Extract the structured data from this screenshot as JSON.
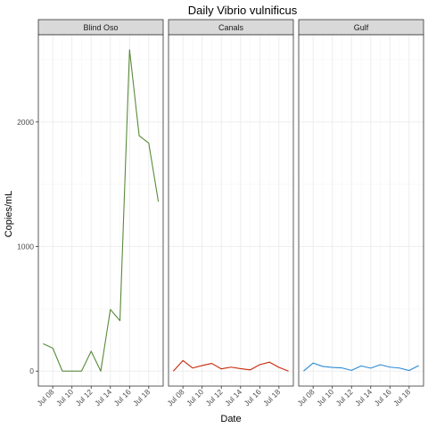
{
  "chart_data": {
    "type": "line",
    "title": "Daily Vibrio vulnificus",
    "xlabel": "Date",
    "ylabel": "Copies/mL",
    "x_tick_labels": [
      "Jul 08",
      "Jul 10",
      "Jul 12",
      "Jul 14",
      "Jul 16",
      "Jul 18"
    ],
    "y_ticks": [
      0,
      1000,
      2000
    ],
    "ylim": [
      -120,
      2700
    ],
    "grid": true,
    "x": [
      "Jul 07",
      "Jul 08",
      "Jul 09",
      "Jul 10",
      "Jul 11",
      "Jul 12",
      "Jul 13",
      "Jul 14",
      "Jul 15",
      "Jul 16",
      "Jul 17",
      "Jul 18",
      "Jul 19"
    ],
    "panels": [
      {
        "name": "Blind Oso",
        "color": "#5a8a3a",
        "values": [
          220,
          185,
          0,
          0,
          0,
          160,
          0,
          495,
          405,
          2580,
          1890,
          1830,
          1360
        ]
      },
      {
        "name": "Canals",
        "color": "#c8280a",
        "values": [
          0,
          85,
          25,
          45,
          62,
          18,
          32,
          20,
          10,
          52,
          72,
          30,
          0
        ]
      },
      {
        "name": "Gulf",
        "color": "#2a8ad8",
        "values": [
          0,
          65,
          38,
          30,
          26,
          6,
          42,
          24,
          52,
          32,
          25,
          5,
          45
        ]
      }
    ]
  }
}
